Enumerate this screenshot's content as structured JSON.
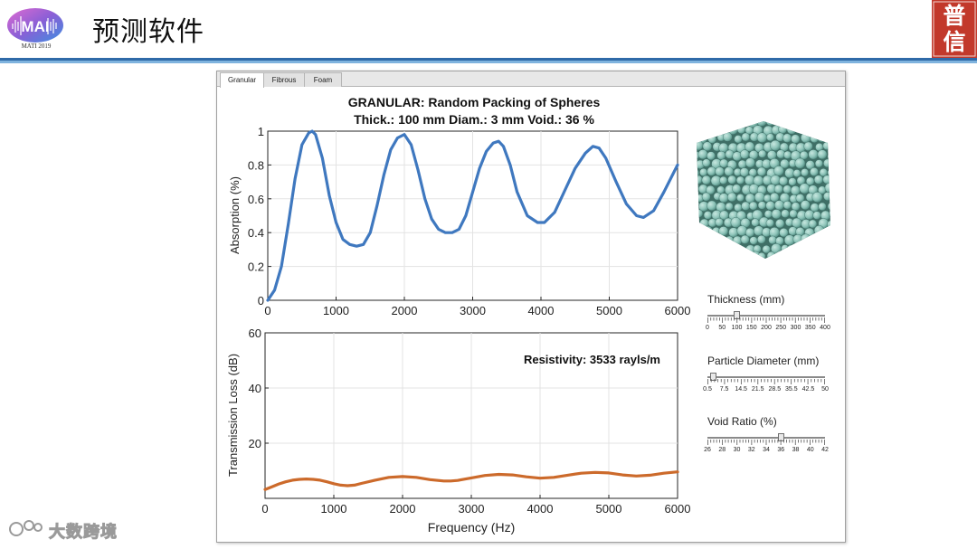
{
  "slide": {
    "title": "预测软件",
    "logo_text": "MATI 2019",
    "stamp_chars": [
      "普",
      "信"
    ],
    "watermark": "大数跨境",
    "colors": {
      "rule_dark": "#2f6aa8",
      "rule_light": "#7fb3de",
      "stamp": "#c2392b"
    }
  },
  "app": {
    "tabs": [
      {
        "label": "Granular",
        "active": true
      },
      {
        "label": "Fibrous",
        "active": false
      },
      {
        "label": "Foam",
        "active": false
      }
    ],
    "sample_title_line1": "GRANULAR: Random Packing of Spheres",
    "sample_title_line2": "Thick.: 100 mm  Diam.: 3 mm  Void.: 36 %",
    "resistivity_text": "Resistivity: 3533 rayls/m",
    "sample_image_icon": "granular-sample-image",
    "sliders": [
      {
        "label": "Thickness (mm)",
        "value": 100,
        "min": 0,
        "max": 400,
        "tick_labels": [
          "0",
          "50",
          "100",
          "150",
          "200",
          "250",
          "300",
          "350",
          "400"
        ]
      },
      {
        "label": "Particle Diameter (mm)",
        "value": 3,
        "min": 0.5,
        "max": 50,
        "tick_labels": [
          "0.5",
          "7.5",
          "14.5",
          "21.5",
          "28.5",
          "35.5",
          "42.5",
          "50"
        ]
      },
      {
        "label": "Void Ratio (%)",
        "value": 36,
        "min": 26,
        "max": 42,
        "tick_labels": [
          "26",
          "28",
          "30",
          "32",
          "34",
          "36",
          "38",
          "40",
          "42"
        ]
      }
    ]
  },
  "chart_data": [
    {
      "type": "line",
      "name": "absorption",
      "title": "",
      "xlabel": "",
      "ylabel": "Absorption (%)",
      "xlim": [
        0,
        6000
      ],
      "ylim": [
        0,
        1
      ],
      "xticks": [
        0,
        1000,
        2000,
        3000,
        4000,
        5000,
        6000
      ],
      "yticks": [
        0,
        0.2,
        0.4,
        0.6,
        0.8,
        1
      ],
      "ytick_labels": [
        "0",
        "0.2",
        "0.4",
        "0.6",
        "0.8",
        "1"
      ],
      "grid": true,
      "series": [
        {
          "name": "Absorption",
          "color": "#3f78bf",
          "x": [
            0,
            100,
            200,
            300,
            400,
            500,
            600,
            650,
            700,
            800,
            900,
            1000,
            1100,
            1200,
            1300,
            1400,
            1500,
            1600,
            1700,
            1800,
            1900,
            2000,
            2100,
            2200,
            2300,
            2400,
            2500,
            2600,
            2700,
            2800,
            2900,
            3000,
            3100,
            3200,
            3300,
            3380,
            3450,
            3550,
            3650,
            3800,
            3950,
            4050,
            4200,
            4350,
            4500,
            4650,
            4760,
            4850,
            4950,
            5100,
            5250,
            5400,
            5500,
            5650,
            5800,
            5950,
            6000
          ],
          "values": [
            0,
            0.06,
            0.2,
            0.45,
            0.72,
            0.92,
            0.99,
            1.0,
            0.98,
            0.84,
            0.62,
            0.46,
            0.36,
            0.33,
            0.32,
            0.33,
            0.4,
            0.56,
            0.74,
            0.89,
            0.96,
            0.98,
            0.92,
            0.77,
            0.6,
            0.48,
            0.42,
            0.4,
            0.4,
            0.42,
            0.5,
            0.64,
            0.78,
            0.88,
            0.93,
            0.94,
            0.91,
            0.8,
            0.64,
            0.5,
            0.46,
            0.46,
            0.52,
            0.65,
            0.78,
            0.87,
            0.91,
            0.9,
            0.84,
            0.7,
            0.57,
            0.5,
            0.49,
            0.53,
            0.64,
            0.76,
            0.8
          ]
        }
      ]
    },
    {
      "type": "line",
      "name": "transmission-loss",
      "title": "",
      "xlabel": "Frequency (Hz)",
      "ylabel": "Transmission Loss (dB)",
      "xlim": [
        0,
        6000
      ],
      "ylim": [
        0,
        60
      ],
      "xticks": [
        0,
        1000,
        2000,
        3000,
        4000,
        5000,
        6000
      ],
      "yticks": [
        0,
        20,
        40,
        60
      ],
      "ytick_labels": [
        "",
        "20",
        "40",
        "60"
      ],
      "grid": true,
      "series": [
        {
          "name": "Transmission Loss",
          "color": "#cc6a2b",
          "x": [
            0,
            100,
            200,
            300,
            400,
            500,
            600,
            700,
            800,
            900,
            1000,
            1100,
            1200,
            1300,
            1400,
            1600,
            1800,
            2000,
            2200,
            2400,
            2600,
            2700,
            2800,
            3000,
            3200,
            3400,
            3600,
            3800,
            4000,
            4200,
            4400,
            4600,
            4800,
            5000,
            5200,
            5400,
            5600,
            5800,
            6000
          ],
          "values": [
            3.2,
            4.2,
            5.2,
            6.0,
            6.6,
            6.9,
            7.0,
            6.9,
            6.6,
            6.0,
            5.3,
            4.8,
            4.6,
            4.8,
            5.4,
            6.6,
            7.6,
            7.9,
            7.6,
            6.8,
            6.3,
            6.3,
            6.5,
            7.4,
            8.3,
            8.7,
            8.5,
            7.8,
            7.3,
            7.6,
            8.4,
            9.1,
            9.4,
            9.2,
            8.5,
            8.1,
            8.4,
            9.1,
            9.6
          ]
        }
      ]
    }
  ]
}
